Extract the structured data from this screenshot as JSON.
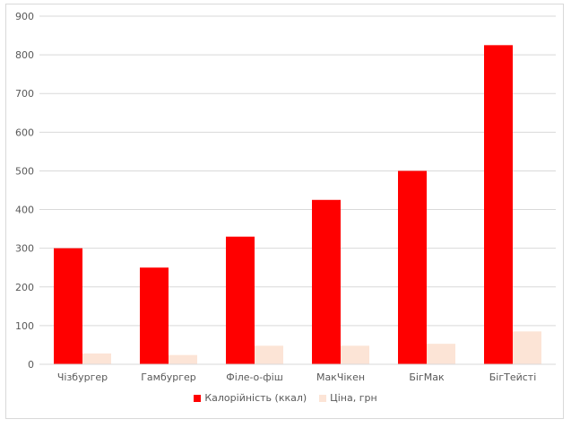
{
  "chart_data": {
    "type": "bar",
    "title": "",
    "xlabel": "",
    "ylabel": "",
    "categories": [
      "Чізбургер",
      "Гамбургер",
      "Філе-о-фіш",
      "МакЧікен",
      "БігМак",
      "БігТейсті"
    ],
    "series": [
      {
        "name": "Калорійність (ккал)",
        "color": "#ff0000",
        "values": [
          300,
          250,
          330,
          425,
          500,
          825
        ]
      },
      {
        "name": "Ціна, грн",
        "color": "#fce4d6",
        "values": [
          28,
          24,
          48,
          48,
          53,
          85
        ]
      }
    ],
    "ylim": [
      0,
      900
    ],
    "yticks": [
      0,
      100,
      200,
      300,
      400,
      500,
      600,
      700,
      800,
      900
    ],
    "grid": true,
    "legend_position": "bottom"
  }
}
